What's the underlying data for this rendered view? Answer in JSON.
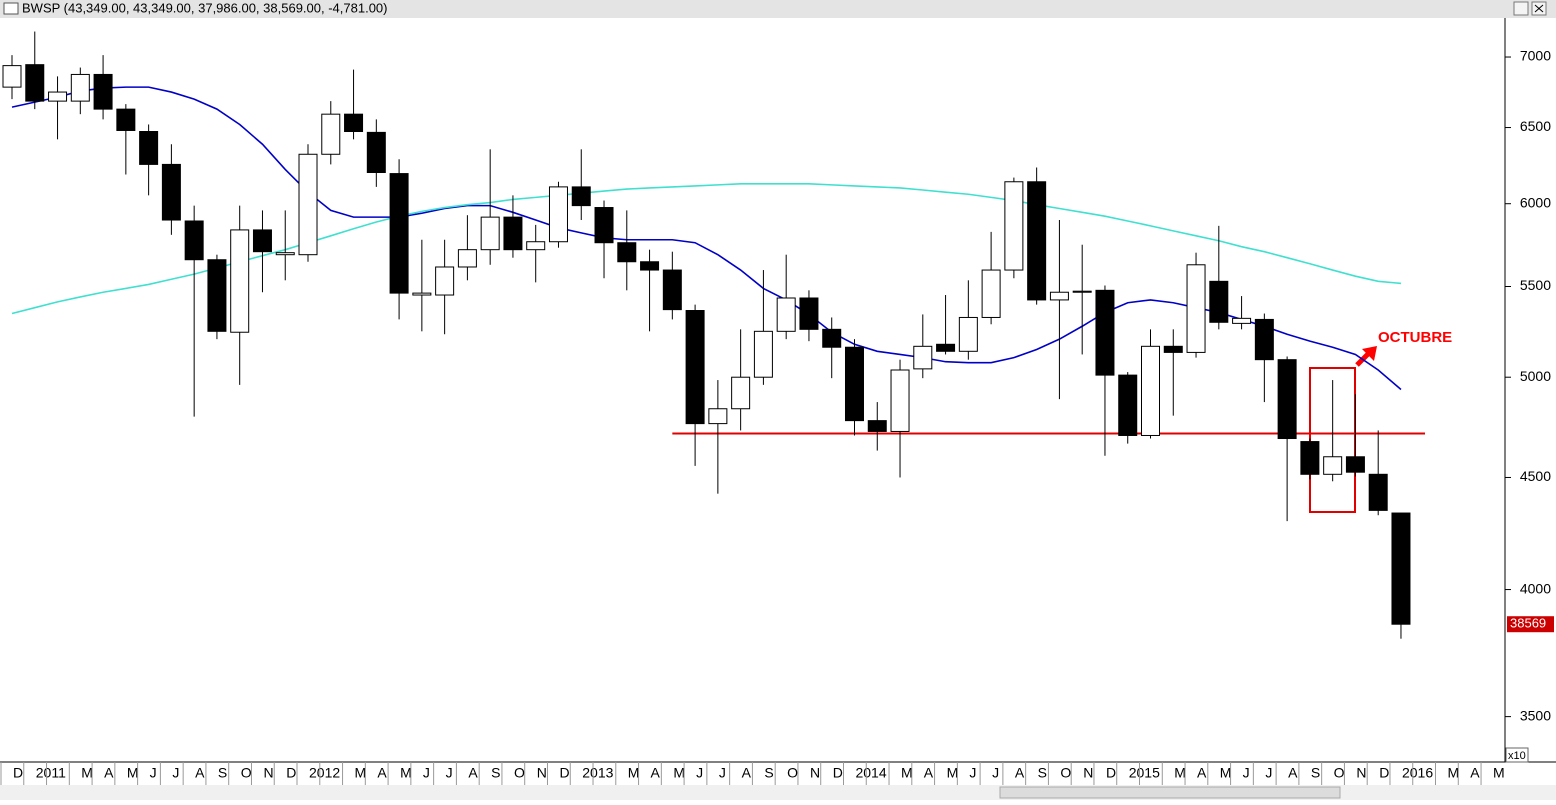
{
  "title_bar": "BWSP (43,349.00, 43,349.00, 37,986.00, 38,569.00, -4,781.00)",
  "chart_data": {
    "type": "candlestick",
    "categories": [
      "D",
      "2011",
      null,
      "M",
      "A",
      "M",
      "J",
      "J",
      "A",
      "S",
      "O",
      "N",
      "D",
      "2012",
      null,
      "M",
      "A",
      "M",
      "J",
      "J",
      "A",
      "S",
      "O",
      "N",
      "D",
      "2013",
      null,
      "M",
      "A",
      "M",
      "J",
      "J",
      "A",
      "S",
      "O",
      "N",
      "D",
      "2014",
      null,
      "M",
      "A",
      "M",
      "J",
      "J",
      "A",
      "S",
      "O",
      "N",
      "D",
      "2015",
      null,
      "M",
      "A",
      "M",
      "J",
      "J",
      "A",
      "S",
      "O",
      "N",
      "D",
      "2016",
      null,
      "M",
      "A",
      "M"
    ],
    "open": [
      6782,
      6944,
      6683,
      6683,
      6873,
      6627,
      6473,
      6253,
      5892,
      5657,
      5242,
      5837,
      5687,
      5687,
      6320,
      6592,
      6467,
      6193,
      5451,
      5451,
      5614,
      5717,
      5916,
      5717,
      5765,
      6107,
      5976,
      5759,
      5645,
      5596,
      5363,
      4762,
      4837,
      5000,
      5247,
      5434,
      5258,
      5160,
      4777,
      4723,
      5044,
      5176,
      5138,
      5324,
      5596,
      6140,
      5423,
      5467,
      5478,
      5011,
      4703,
      5165,
      5132,
      5530,
      5291,
      5313,
      5093,
      4673,
      4515,
      4599,
      4515,
      4334.9,
      null,
      null,
      null,
      null
    ],
    "high": [
      7014,
      7190,
      6859,
      6923,
      7014,
      6662,
      6521,
      6387,
      5988,
      5687,
      5988,
      5958,
      5958,
      6387,
      6683,
      6908,
      6556,
      6287,
      5777,
      5777,
      5928,
      6353,
      6053,
      5868,
      6140,
      6353,
      6020,
      5958,
      5717,
      5705,
      5396,
      4985,
      5258,
      5596,
      5687,
      5478,
      5324,
      5204,
      4871,
      5093,
      5341,
      5451,
      5536,
      5825,
      6167,
      6233,
      5898,
      5747,
      5506,
      5027,
      5258,
      5258,
      5699,
      5862,
      5445,
      5346,
      5110,
      4688,
      4985,
      4911,
      4728,
      4334.9,
      null,
      null,
      null,
      null
    ],
    "low": [
      6697,
      6627,
      6420,
      6592,
      6556,
      6187,
      6053,
      5807,
      4797,
      5204,
      4960,
      5467,
      5536,
      5645,
      6253,
      6420,
      6107,
      5313,
      5247,
      5231,
      5536,
      5627,
      5669,
      5524,
      5729,
      5898,
      5548,
      5478,
      5247,
      5313,
      4555,
      4424,
      4728,
      4960,
      5204,
      5193,
      4995,
      4703,
      4629,
      4500,
      4995,
      5121,
      5093,
      5286,
      5548,
      5396,
      4886,
      5121,
      4604,
      4663,
      4688,
      4802,
      5104,
      5258,
      5258,
      4871,
      4298,
      4491,
      4482,
      4505,
      4325,
      3798.6,
      null,
      null,
      null,
      null
    ],
    "close": [
      6937,
      6683,
      6747,
      6873,
      6627,
      6480,
      6253,
      5898,
      5657,
      5247,
      5837,
      5705,
      5699,
      6320,
      6592,
      6473,
      6200,
      5462,
      5462,
      5614,
      5717,
      5916,
      5717,
      5765,
      6107,
      5988,
      5759,
      5645,
      5596,
      5368,
      4762,
      4837,
      5000,
      5247,
      5434,
      5258,
      5160,
      4777,
      4723,
      5038,
      5165,
      5138,
      5324,
      5596,
      6140,
      5423,
      5467,
      5473,
      5011,
      4703,
      5165,
      5132,
      5627,
      5297,
      5319,
      5093,
      4688,
      4515,
      4599,
      4525,
      4347,
      3856.9,
      null,
      null,
      null,
      null
    ],
    "lines": [
      {
        "color": "#0000c8",
        "values": [
          6641,
          6676,
          6711,
          6754,
          6775,
          6782,
          6782,
          6747,
          6697,
          6627,
          6521,
          6387,
          6220,
          6073,
          5958,
          5916,
          5916,
          5916,
          5940,
          5970,
          5988,
          5988,
          5946,
          5898,
          5850,
          5819,
          5789,
          5777,
          5777,
          5777,
          5759,
          5687,
          5596,
          5489,
          5423,
          5341,
          5242,
          5176,
          5138,
          5121,
          5104,
          5082,
          5077,
          5077,
          5104,
          5148,
          5204,
          5275,
          5352,
          5407,
          5423,
          5407,
          5379,
          5352,
          5313,
          5275,
          5231,
          5193,
          5160,
          5121,
          5038,
          4936,
          null,
          null,
          null,
          null
        ]
      },
      {
        "color": "#40e0d0",
        "values": [
          5346,
          5379,
          5412,
          5440,
          5467,
          5489,
          5512,
          5542,
          5572,
          5608,
          5645,
          5681,
          5717,
          5759,
          5801,
          5844,
          5886,
          5922,
          5952,
          5976,
          5994,
          6007,
          6027,
          6040,
          6053,
          6067,
          6080,
          6093,
          6100,
          6107,
          6113,
          6120,
          6127,
          6127,
          6127,
          6127,
          6120,
          6113,
          6107,
          6100,
          6087,
          6073,
          6060,
          6040,
          6020,
          5994,
          5970,
          5946,
          5922,
          5892,
          5862,
          5831,
          5801,
          5771,
          5735,
          5705,
          5669,
          5633,
          5596,
          5560,
          5530,
          5518,
          null,
          null,
          null,
          null
        ]
      }
    ],
    "support_level": 4713,
    "annotation": "OCTUBRE",
    "last_price_label": "38569",
    "scale_label": "x10",
    "ylim": [
      3337,
      7293
    ],
    "yticks": [
      3500,
      4000,
      4500,
      5000,
      5500,
      6000,
      6500,
      7000
    ],
    "log_scale": true,
    "up_color": "#ffffff",
    "down_color": "#000000",
    "support_color": "#e00000"
  }
}
